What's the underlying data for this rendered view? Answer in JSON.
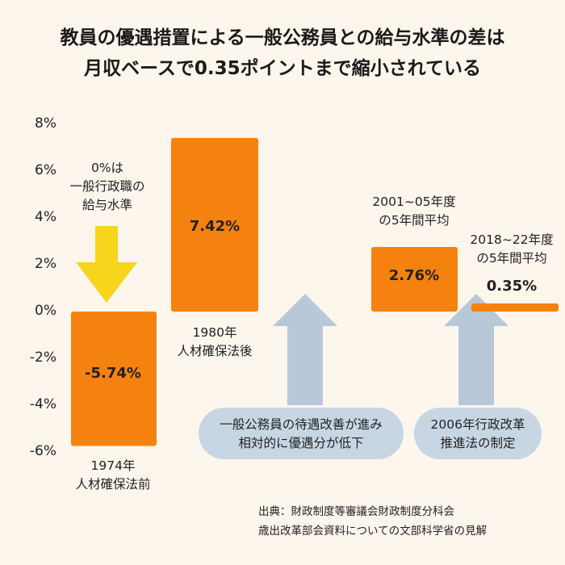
{
  "title_lines": [
    "教員の優遇措置による一般公務員との給与水準の差は",
    "月収ベースで0.35ポイントまで縮小されている"
  ],
  "chart_data": {
    "type": "bar",
    "categories": [
      "1974年 人材確保法前",
      "1980年 人材確保法後",
      "2001~05年度の5年間平均",
      "2018~22年度の5年間平均"
    ],
    "values": [
      -5.74,
      7.42,
      2.76,
      0.35
    ],
    "value_labels": [
      "-5.74%",
      "7.42%",
      "2.76%",
      "0.35%"
    ],
    "ylim": [
      -6,
      8
    ],
    "yticks": [
      "8%",
      "6%",
      "4%",
      "2%",
      "0%",
      "-2%",
      "-4%",
      "-6%"
    ],
    "bar_color": "#f5820f",
    "category_labels": [
      [
        "1974年",
        "人材確保法前"
      ],
      [
        "1980年",
        "人材確保法後"
      ],
      [
        "2001~05年度",
        "の5年間平均"
      ],
      [
        "2018~22年度",
        "の5年間平均"
      ]
    ]
  },
  "note_zero": [
    "0%は",
    "一般行政職の",
    "給与水準"
  ],
  "callouts": [
    [
      "一般公務員の待遇改善が進み",
      "相対的に優遇分が低下"
    ],
    [
      "2006年行政改革",
      "推進法の制定"
    ]
  ],
  "source": [
    "出典：財政制度等審議会財政制度分科会",
    "歳出改革部会資料についての文部科学省の見解"
  ],
  "colors": {
    "bar": "#f5820f",
    "down_arrow": "#f7d51d",
    "up_arrow": "#b8c8d8",
    "background": "#fcf6ec"
  }
}
